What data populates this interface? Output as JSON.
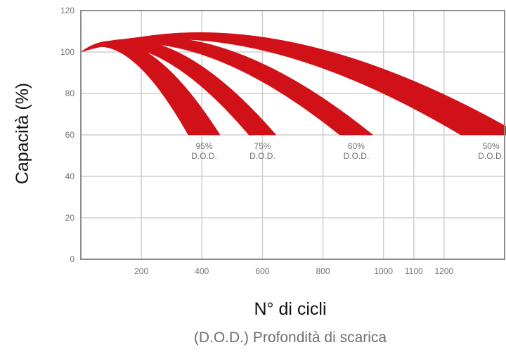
{
  "chart_data": {
    "type": "area",
    "ylabel": "Capacità (%)",
    "xlabel": "N° di cicli",
    "caption": "(D.O.D.) Profondità di scarica",
    "xlim": [
      0,
      1400
    ],
    "ylim": [
      0,
      120
    ],
    "x_ticks": [
      200,
      400,
      600,
      800,
      1000,
      1100,
      1200
    ],
    "y_ticks": [
      0,
      20,
      40,
      60,
      80,
      100,
      120
    ],
    "grid": true,
    "band_color": "#d11118",
    "start": {
      "x": 0,
      "y": 100
    },
    "series": [
      {
        "name": "95%|D.O.D.",
        "lower_end_x": 355,
        "upper_end_x": 460,
        "end_y": 60,
        "peak_y": 100.5
      },
      {
        "name": "75%|D.O.D.",
        "lower_end_x": 555,
        "upper_end_x": 645,
        "end_y": 60,
        "peak_y": 101.5
      },
      {
        "name": "60%|D.O.D.",
        "lower_end_x": 855,
        "upper_end_x": 965,
        "end_y": 60,
        "peak_y": 103
      },
      {
        "name": "50%|D.O.D.",
        "lower_end_x": 1255,
        "upper_end_x": 1455,
        "end_y": 60,
        "peak_y": 105.5
      }
    ]
  }
}
